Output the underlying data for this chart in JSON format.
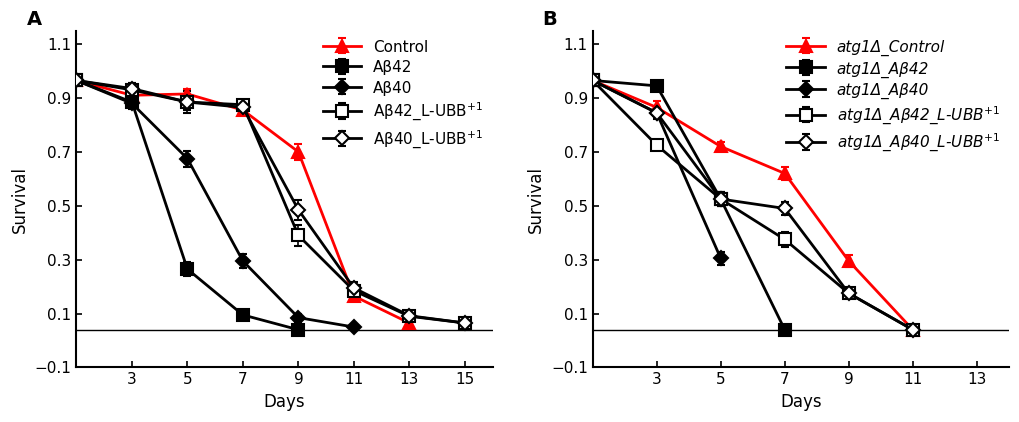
{
  "panel_A": {
    "xlabel": "Days",
    "ylabel": "Survival",
    "xlim": [
      1,
      16
    ],
    "ylim": [
      -0.1,
      1.15
    ],
    "yticks": [
      -0.1,
      0.1,
      0.3,
      0.5,
      0.7,
      0.9,
      1.1
    ],
    "xticks": [
      3,
      5,
      7,
      9,
      11,
      13,
      15
    ],
    "hline_y": 0.04,
    "series": [
      {
        "label": "Control",
        "x": [
          1,
          3,
          5,
          7,
          9,
          11,
          13
        ],
        "y": [
          0.965,
          0.91,
          0.915,
          0.855,
          0.7,
          0.165,
          0.065
        ],
        "yerr": [
          0.005,
          0.015,
          0.02,
          0.015,
          0.03,
          0.015,
          0.012
        ],
        "color": "red",
        "marker": "^",
        "mfc": "red",
        "mec": "red",
        "markersize": 8,
        "linewidth": 2.0
      },
      {
        "label": "Aβ42",
        "x": [
          1,
          3,
          5,
          7,
          9
        ],
        "y": [
          0.965,
          0.885,
          0.265,
          0.095,
          0.04
        ],
        "yerr": [
          0.005,
          0.02,
          0.025,
          0.015,
          0.005
        ],
        "color": "black",
        "marker": "s",
        "mfc": "black",
        "mec": "black",
        "markersize": 8,
        "linewidth": 2.0
      },
      {
        "label": "Aβ40",
        "x": [
          1,
          3,
          5,
          7,
          9,
          11
        ],
        "y": [
          0.965,
          0.88,
          0.675,
          0.295,
          0.085,
          0.05
        ],
        "yerr": [
          0.005,
          0.02,
          0.03,
          0.025,
          0.015,
          0.008
        ],
        "color": "black",
        "marker": "D",
        "mfc": "black",
        "mec": "black",
        "markersize": 7,
        "linewidth": 2.0
      },
      {
        "label": "Aβ42_L-UBB$^{+1}$",
        "x": [
          1,
          3,
          5,
          7,
          9,
          11,
          13,
          15
        ],
        "y": [
          0.965,
          0.93,
          0.885,
          0.875,
          0.39,
          0.185,
          0.09,
          0.065
        ],
        "yerr": [
          0.005,
          0.025,
          0.04,
          0.012,
          0.04,
          0.022,
          0.018,
          0.01
        ],
        "color": "black",
        "marker": "s",
        "mfc": "white",
        "mec": "black",
        "markersize": 8,
        "linewidth": 2.0
      },
      {
        "label": "Aβ40_L-UBB$^{+1}$",
        "x": [
          1,
          3,
          5,
          7,
          9,
          11,
          13,
          15
        ],
        "y": [
          0.965,
          0.935,
          0.885,
          0.865,
          0.485,
          0.195,
          0.092,
          0.065
        ],
        "yerr": [
          0.005,
          0.022,
          0.03,
          0.018,
          0.038,
          0.022,
          0.018,
          0.01
        ],
        "color": "black",
        "marker": "D",
        "mfc": "white",
        "mec": "black",
        "markersize": 7,
        "linewidth": 2.0
      }
    ]
  },
  "panel_B": {
    "xlabel": "Days",
    "ylabel": "Survival",
    "xlim": [
      1,
      14
    ],
    "ylim": [
      -0.1,
      1.15
    ],
    "yticks": [
      -0.1,
      0.1,
      0.3,
      0.5,
      0.7,
      0.9,
      1.1
    ],
    "xticks": [
      3,
      5,
      7,
      9,
      11,
      13
    ],
    "hline_y": 0.04,
    "series": [
      {
        "label": "atg1Δ_Control",
        "x": [
          1,
          3,
          5,
          7,
          9,
          11
        ],
        "y": [
          0.965,
          0.865,
          0.72,
          0.62,
          0.295,
          0.04
        ],
        "yerr": [
          0.005,
          0.022,
          0.018,
          0.025,
          0.022,
          0.008
        ],
        "color": "red",
        "marker": "^",
        "mfc": "red",
        "mec": "red",
        "markersize": 8,
        "linewidth": 2.0
      },
      {
        "label": "atg1Δ_Aβ42",
        "x": [
          1,
          3,
          5,
          7
        ],
        "y": [
          0.965,
          0.945,
          0.525,
          0.04
        ],
        "yerr": [
          0.005,
          0.012,
          0.025,
          0.005
        ],
        "color": "black",
        "marker": "s",
        "mfc": "black",
        "mec": "black",
        "markersize": 8,
        "linewidth": 2.0
      },
      {
        "label": "atg1Δ_Aβ40",
        "x": [
          1,
          3,
          5
        ],
        "y": [
          0.965,
          0.845,
          0.305
        ],
        "yerr": [
          0.005,
          0.022,
          0.025
        ],
        "color": "black",
        "marker": "D",
        "mfc": "black",
        "mec": "black",
        "markersize": 7,
        "linewidth": 2.0
      },
      {
        "label": "atg1Δ_Aβ42_L-UBB$^{+1}$",
        "x": [
          1,
          3,
          5,
          7,
          9,
          11
        ],
        "y": [
          0.965,
          0.725,
          0.525,
          0.375,
          0.175,
          0.04
        ],
        "yerr": [
          0.005,
          0.018,
          0.025,
          0.028,
          0.018,
          0.008
        ],
        "color": "black",
        "marker": "s",
        "mfc": "white",
        "mec": "black",
        "markersize": 8,
        "linewidth": 2.0
      },
      {
        "label": "atg1Δ_Aβ40_L-UBB$^{+1}$",
        "x": [
          1,
          3,
          5,
          7,
          9,
          11
        ],
        "y": [
          0.965,
          0.845,
          0.525,
          0.49,
          0.175,
          0.04
        ],
        "yerr": [
          0.005,
          0.018,
          0.025,
          0.025,
          0.018,
          0.008
        ],
        "color": "black",
        "marker": "D",
        "mfc": "white",
        "mec": "black",
        "markersize": 7,
        "linewidth": 2.0
      }
    ]
  },
  "font_size": 11,
  "label_fontsize": 12,
  "panel_label_fontsize": 14
}
